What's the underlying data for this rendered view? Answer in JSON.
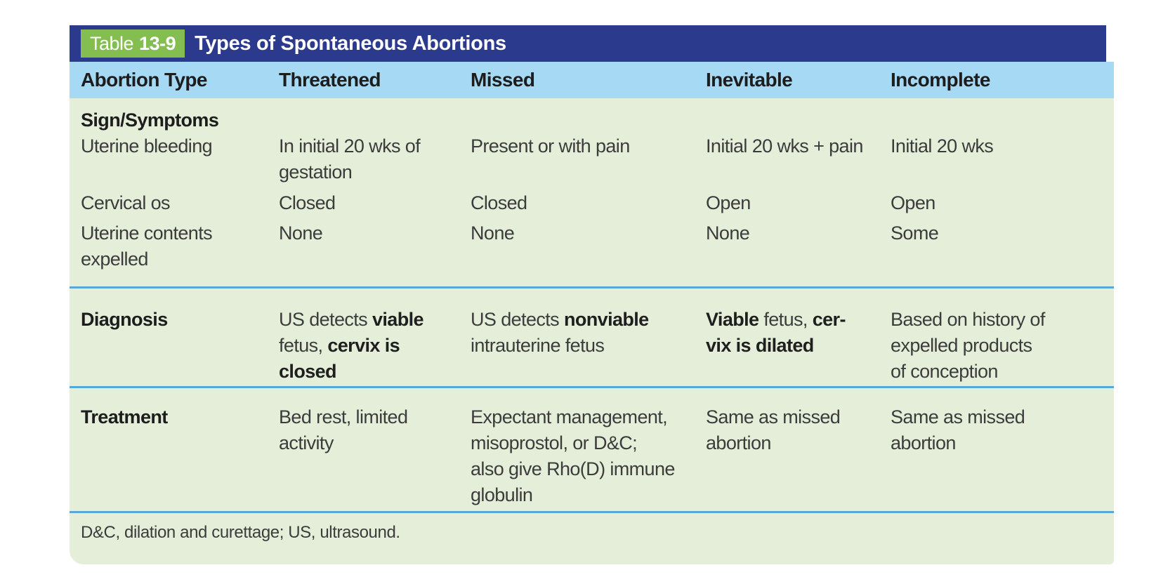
{
  "table": {
    "label_word": "Table",
    "label_number": "13-9",
    "title": "Types of Spontaneous Abortions",
    "columns": [
      "Abortion Type",
      "Threatened",
      "Missed",
      "Inevitable",
      "Incomplete"
    ],
    "sections": [
      {
        "heading": "Sign/Symptoms",
        "rows": [
          {
            "label": "Uterine bleeding",
            "values": [
              "In initial 20 wks of\ngestation",
              "Present or with pain",
              "Initial 20 wks + pain",
              "Initial 20 wks"
            ]
          },
          {
            "label": "Cervical os",
            "values": [
              "Closed",
              "Closed",
              "Open",
              "Open"
            ]
          },
          {
            "label": "Uterine contents\nexpelled",
            "values": [
              "None",
              "None",
              "None",
              "Some"
            ]
          }
        ]
      },
      {
        "label": "Diagnosis",
        "values": [
          "US detects **viable**\nfetus, **cervix is**\n**closed**",
          "US detects **nonviable**\nintrauterine fetus",
          "**Viable** fetus, **cer-**\n**vix is dilated**",
          "Based on history of\nexpelled products\nof conception"
        ]
      },
      {
        "label": "Treatment",
        "values": [
          "Bed rest, limited\nactivity",
          "Expectant management,\nmisoprostol, or D&C;\nalso give Rho(D) immune\nglobulin",
          "Same as missed\nabortion",
          "Same as missed\nabortion"
        ]
      }
    ],
    "footnote": "D&C, dilation and curettage; US, ultrasound."
  },
  "colors": {
    "navy": "#2b3a8c",
    "badge_green": "#84bd50",
    "header_blue": "#a6d9f3",
    "body_green": "#e4eed9",
    "divider_blue": "#55a9da",
    "text_dark": "#1d1d1d",
    "text_body": "#3c3c3c"
  }
}
